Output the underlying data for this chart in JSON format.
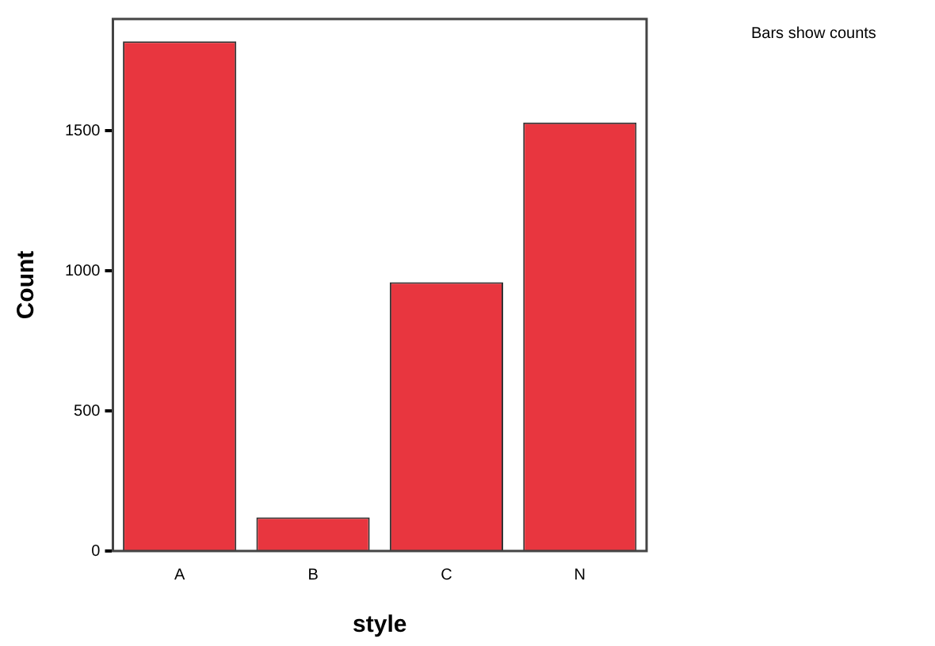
{
  "chart_data": {
    "type": "bar",
    "xlabel": "style",
    "ylabel": "Count",
    "categories": [
      "A",
      "B",
      "C",
      "N"
    ],
    "values": [
      1820,
      120,
      960,
      1530
    ],
    "color": "#e8363f",
    "ylim": [
      0,
      1900
    ],
    "yticks": [
      0,
      500,
      1000,
      1500
    ],
    "grid": false,
    "legend": false,
    "annotations": [
      "Bars show counts"
    ]
  }
}
